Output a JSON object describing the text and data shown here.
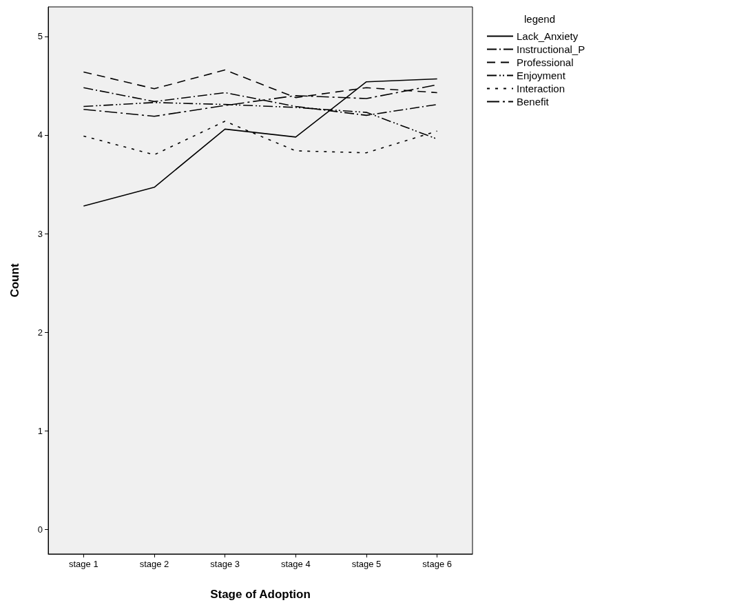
{
  "chart_data": {
    "type": "line",
    "xlabel": "Stage of Adoption",
    "ylabel": "Count",
    "legend_title": "legend",
    "categories": [
      "stage 1",
      "stage 2",
      "stage 3",
      "stage 4",
      "stage 5",
      "stage 6"
    ],
    "series": [
      {
        "name": "Lack_Anxiety",
        "color": "#000000",
        "line_style": "solid",
        "values": [
          3.28,
          3.47,
          4.06,
          3.98,
          4.54,
          4.57
        ]
      },
      {
        "name": "Instructional_P",
        "color": "#000000",
        "line_style": "dashdot",
        "values": [
          4.48,
          4.34,
          4.43,
          4.29,
          4.2,
          4.31
        ]
      },
      {
        "name": "Professional",
        "color": "#000000",
        "line_style": "dashed",
        "values": [
          4.64,
          4.47,
          4.66,
          4.38,
          4.48,
          4.43
        ]
      },
      {
        "name": "Enjoyment",
        "color": "#000000",
        "line_style": "dashdotdot",
        "values": [
          4.29,
          4.33,
          4.31,
          4.28,
          4.23,
          3.96
        ]
      },
      {
        "name": "Interaction",
        "color": "#000000",
        "line_style": "dotted",
        "values": [
          3.99,
          3.8,
          4.14,
          3.84,
          3.82,
          4.04
        ]
      },
      {
        "name": "Benefit",
        "color": "#000000",
        "line_style": "longdashdot",
        "values": [
          4.26,
          4.19,
          4.3,
          4.4,
          4.37,
          4.51
        ]
      }
    ],
    "ylim": [
      -0.25,
      5.3
    ],
    "yticks": [
      0,
      1,
      2,
      3,
      4,
      5
    ],
    "grid": false,
    "legend": "right",
    "marker": "none"
  }
}
